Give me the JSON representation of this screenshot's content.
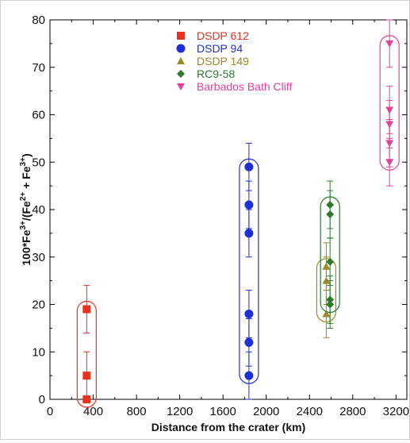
{
  "chart_data": {
    "type": "scatter",
    "title": "",
    "xlabel": "Distance from the crater (km)",
    "ylabel": {
      "parts": [
        "100*",
        "Fe",
        "3+",
        "/",
        "(",
        "Fe",
        "2+",
        " + ",
        "Fe",
        "3+",
        ")"
      ]
    },
    "xlim": [
      0,
      3300
    ],
    "ylim": [
      0,
      80
    ],
    "xticks": [
      0,
      400,
      800,
      1200,
      1600,
      2000,
      2400,
      2800,
      3200
    ],
    "yticks": [
      0,
      10,
      20,
      30,
      40,
      50,
      60,
      70,
      80
    ],
    "grid": false,
    "legend_position": "top-center",
    "series": [
      {
        "name": "DSDP 612",
        "marker": "square",
        "color": "#e8321e",
        "points": [
          {
            "x": 340,
            "y": 19,
            "err": 5
          },
          {
            "x": 340,
            "y": 5,
            "err": 5
          },
          {
            "x": 340,
            "y": 0,
            "err": 0
          }
        ],
        "envelope": {
          "x": 340,
          "ymin": 0,
          "ymax": 19
        }
      },
      {
        "name": "DSDP 94",
        "marker": "circle",
        "color": "#1f2fd6",
        "points": [
          {
            "x": 1840,
            "y": 49,
            "err": 5
          },
          {
            "x": 1840,
            "y": 41,
            "err": 5
          },
          {
            "x": 1840,
            "y": 35,
            "err": 5
          },
          {
            "x": 1840,
            "y": 18,
            "err": 5
          },
          {
            "x": 1840,
            "y": 12,
            "err": 5
          },
          {
            "x": 1840,
            "y": 5,
            "err": 5
          }
        ],
        "envelope": {
          "x": 1840,
          "ymin": 5,
          "ymax": 49
        }
      },
      {
        "name": "DSDP 149",
        "marker": "triangle-up",
        "color": "#9a8a26",
        "points": [
          {
            "x": 2555,
            "y": 28,
            "err": 5
          },
          {
            "x": 2555,
            "y": 25,
            "err": 5
          },
          {
            "x": 2555,
            "y": 18,
            "err": 5
          }
        ],
        "envelope": {
          "x": 2555,
          "ymin": 18,
          "ymax": 28
        }
      },
      {
        "name": "RC9-58",
        "marker": "diamond",
        "color": "#2d7a2d",
        "points": [
          {
            "x": 2590,
            "y": 41,
            "err": 5
          },
          {
            "x": 2590,
            "y": 39,
            "err": 5
          },
          {
            "x": 2590,
            "y": 29,
            "err": 5
          },
          {
            "x": 2590,
            "y": 21,
            "err": 5
          },
          {
            "x": 2590,
            "y": 20,
            "err": 5
          }
        ],
        "envelope": {
          "x": 2590,
          "ymin": 20,
          "ymax": 41
        }
      },
      {
        "name": "Barbados Bath Cliff",
        "marker": "triangle-down",
        "color": "#e8409a",
        "points": [
          {
            "x": 3140,
            "y": 75,
            "err": 5
          },
          {
            "x": 3140,
            "y": 61,
            "err": 5
          },
          {
            "x": 3140,
            "y": 58,
            "err": 5
          },
          {
            "x": 3140,
            "y": 54,
            "err": 5
          },
          {
            "x": 3140,
            "y": 50,
            "err": 5
          }
        ],
        "envelope": {
          "x": 3140,
          "ymin": 50,
          "ymax": 75
        }
      }
    ]
  }
}
